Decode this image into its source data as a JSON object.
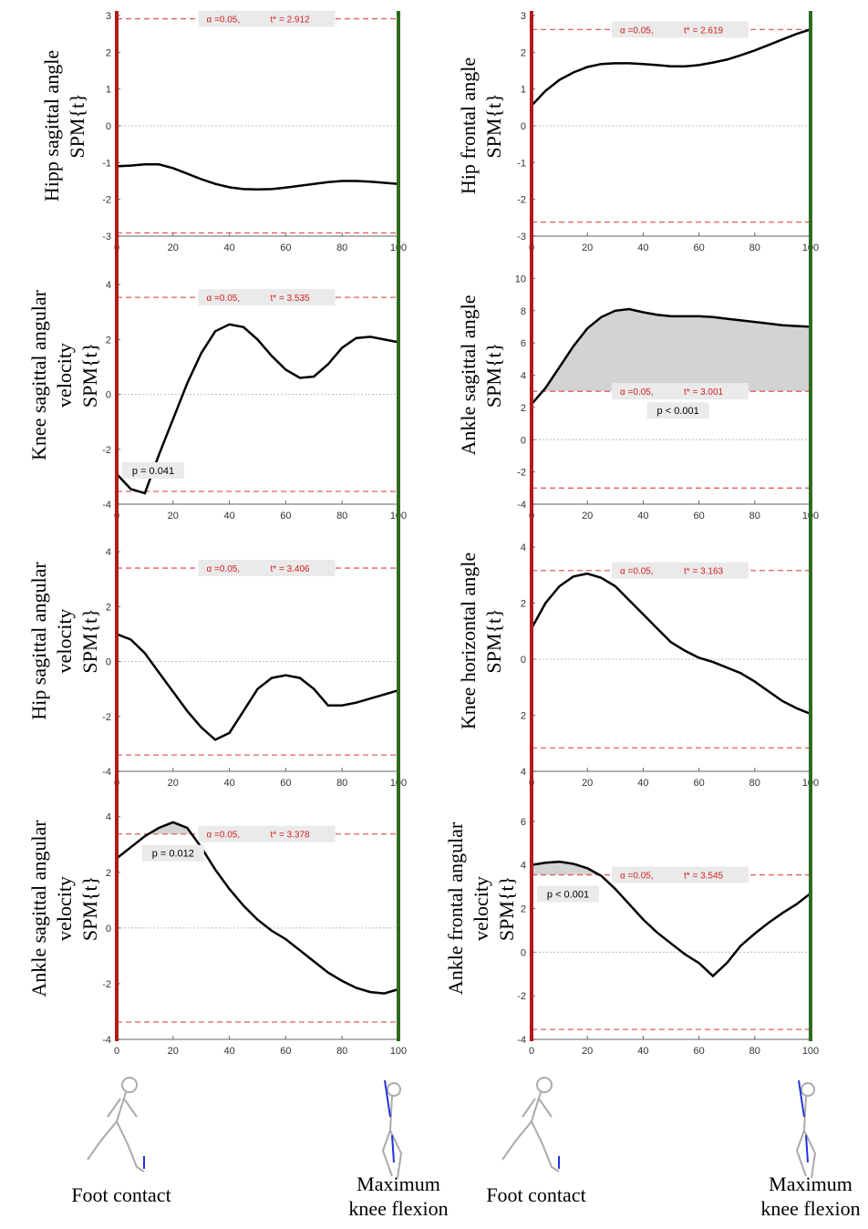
{
  "chart_data": [
    {
      "type": "line",
      "ylabel": [
        "Hipp sagittal angle",
        "SPM{t}"
      ],
      "x": [
        0,
        5,
        10,
        15,
        20,
        25,
        30,
        35,
        40,
        45,
        50,
        55,
        60,
        65,
        70,
        75,
        80,
        85,
        90,
        95,
        100
      ],
      "values": [
        -1.1,
        -1.08,
        -1.05,
        -1.05,
        -1.15,
        -1.3,
        -1.45,
        -1.58,
        -1.67,
        -1.72,
        -1.73,
        -1.72,
        -1.68,
        -1.63,
        -1.58,
        -1.53,
        -1.5,
        -1.5,
        -1.52,
        -1.55,
        -1.58
      ],
      "xlim": [
        0,
        100
      ],
      "xticks": [
        0,
        20,
        40,
        60,
        80,
        100
      ],
      "ylim": [
        -3,
        3
      ],
      "yticks": [
        -3,
        -2,
        -1,
        0,
        1,
        2,
        3
      ],
      "threshold": 2.912,
      "alpha_label": "α =0.05,",
      "threshold_label": "t* = 2.912"
    },
    {
      "type": "line",
      "ylabel": [
        "Hip frontal angle",
        "SPM{t}"
      ],
      "x": [
        0,
        5,
        10,
        15,
        20,
        25,
        30,
        35,
        40,
        45,
        50,
        55,
        60,
        65,
        70,
        75,
        80,
        85,
        90,
        95,
        100
      ],
      "values": [
        0.55,
        0.95,
        1.25,
        1.45,
        1.6,
        1.68,
        1.7,
        1.7,
        1.68,
        1.65,
        1.62,
        1.62,
        1.65,
        1.72,
        1.8,
        1.92,
        2.05,
        2.2,
        2.35,
        2.5,
        2.62
      ],
      "xlim": [
        0,
        100
      ],
      "xticks": [
        0,
        20,
        40,
        60,
        80,
        100
      ],
      "ylim": [
        -3,
        3
      ],
      "yticks": [
        -3,
        -2,
        -1,
        0,
        1,
        2,
        3
      ],
      "threshold": 2.619,
      "alpha_label": "α =0.05,",
      "threshold_label": "t* = 2.619"
    },
    {
      "type": "line",
      "ylabel": [
        "Knee sagittal angular",
        "velocity",
        "SPM{t}"
      ],
      "x": [
        0,
        5,
        10,
        15,
        20,
        25,
        30,
        35,
        40,
        45,
        50,
        55,
        60,
        65,
        70,
        75,
        80,
        85,
        90,
        95,
        100
      ],
      "values": [
        -2.9,
        -3.45,
        -3.6,
        -2.2,
        -0.9,
        0.4,
        1.5,
        2.3,
        2.55,
        2.45,
        2.0,
        1.4,
        0.9,
        0.6,
        0.65,
        1.1,
        1.7,
        2.05,
        2.1,
        2.0,
        1.9
      ],
      "xlim": [
        0,
        100
      ],
      "xticks": [
        0,
        20,
        40,
        60,
        80,
        100
      ],
      "ylim": [
        -4,
        5.4
      ],
      "yticks": [
        -4,
        -2,
        0,
        2,
        4
      ],
      "threshold": 3.535,
      "alpha_label": "α =0.05,",
      "threshold_label": "t* = 3.535",
      "p_label": "p = 0.041"
    },
    {
      "type": "line",
      "ylabel": [
        "Ankle sagittal angle",
        "SPM{t}"
      ],
      "x": [
        0,
        5,
        10,
        15,
        20,
        25,
        30,
        35,
        40,
        45,
        50,
        55,
        60,
        65,
        70,
        75,
        80,
        85,
        90,
        95,
        100
      ],
      "values": [
        2.2,
        3.2,
        4.5,
        5.8,
        6.9,
        7.6,
        8.0,
        8.1,
        7.9,
        7.75,
        7.65,
        7.65,
        7.65,
        7.6,
        7.5,
        7.4,
        7.3,
        7.2,
        7.1,
        7.05,
        7.0
      ],
      "xlim": [
        0,
        100
      ],
      "xticks": [
        0,
        20,
        40,
        60,
        80,
        100
      ],
      "ylim": [
        -4,
        12
      ],
      "yticks": [
        -4,
        -2,
        0,
        2,
        4,
        6,
        8,
        10
      ],
      "threshold": 3.001,
      "alpha_label": "α =0.05,",
      "threshold_label": "t* = 3.001",
      "p_label": "p < 0.001"
    },
    {
      "type": "line",
      "ylabel": [
        "Hip sagittal angular",
        "velocity",
        "SPM{t}"
      ],
      "x": [
        0,
        5,
        10,
        15,
        20,
        25,
        30,
        35,
        40,
        45,
        50,
        55,
        60,
        65,
        70,
        75,
        80,
        85,
        90,
        95,
        100
      ],
      "values": [
        1.0,
        0.8,
        0.3,
        -0.4,
        -1.1,
        -1.8,
        -2.4,
        -2.85,
        -2.6,
        -1.8,
        -1.0,
        -0.6,
        -0.5,
        -0.6,
        -1.0,
        -1.6,
        -1.6,
        -1.5,
        -1.35,
        -1.2,
        -1.05
      ],
      "xlim": [
        0,
        100
      ],
      "xticks": [
        0,
        20,
        40,
        60,
        80,
        100
      ],
      "ylim": [
        -4,
        5.5
      ],
      "yticks": [
        -4,
        -2,
        0,
        2,
        4
      ],
      "threshold": 3.406,
      "alpha_label": "α =0.05,",
      "threshold_label": "t* = 3.406"
    },
    {
      "type": "line",
      "ylabel": [
        "Knee horizontal angle",
        "SPM{t}"
      ],
      "x": [
        0,
        5,
        10,
        15,
        20,
        25,
        30,
        35,
        40,
        45,
        50,
        55,
        60,
        65,
        70,
        75,
        80,
        85,
        90,
        95,
        100
      ],
      "values": [
        1.1,
        2.0,
        2.6,
        2.95,
        3.05,
        2.9,
        2.6,
        2.1,
        1.6,
        1.1,
        0.6,
        0.3,
        0.05,
        -0.1,
        -0.3,
        -0.5,
        -0.8,
        -1.15,
        -1.5,
        -1.75,
        -1.95
      ],
      "xlim": [
        0,
        100
      ],
      "xticks": [
        0,
        20,
        40,
        60,
        80,
        100
      ],
      "ylim": [
        -4,
        5.3
      ],
      "yticks": [
        {
          "value": -4,
          "label": "4"
        },
        {
          "value": -2,
          "label": "2"
        },
        0,
        2,
        4
      ],
      "threshold": 3.163,
      "alpha_label": "α =0.05,",
      "threshold_label": "t* = 3.163"
    },
    {
      "type": "line",
      "ylabel": [
        "Ankle sagittal angular",
        "velocity",
        "SPM{t}"
      ],
      "x": [
        0,
        5,
        10,
        15,
        20,
        25,
        30,
        35,
        40,
        45,
        50,
        55,
        60,
        65,
        70,
        75,
        80,
        85,
        90,
        95,
        100
      ],
      "values": [
        2.5,
        2.9,
        3.3,
        3.6,
        3.8,
        3.6,
        2.9,
        2.1,
        1.4,
        0.8,
        0.3,
        -0.1,
        -0.4,
        -0.8,
        -1.2,
        -1.6,
        -1.9,
        -2.15,
        -2.3,
        -2.35,
        -2.2
      ],
      "xlim": [
        0,
        100
      ],
      "xticks": [
        0,
        20,
        40,
        60,
        80,
        100
      ],
      "ylim": [
        -4,
        5.4
      ],
      "yticks": [
        -4,
        -2,
        0,
        2,
        4
      ],
      "threshold": 3.378,
      "alpha_label": "α =0.05,",
      "threshold_label": "t* = 3.378",
      "p_label": "p = 0.012"
    },
    {
      "type": "line",
      "ylabel": [
        "Ankle frontal angular",
        "velocity",
        "SPM{t}"
      ],
      "x": [
        0,
        5,
        10,
        15,
        20,
        25,
        30,
        35,
        40,
        45,
        50,
        55,
        60,
        65,
        70,
        75,
        80,
        85,
        90,
        95,
        100
      ],
      "values": [
        4.0,
        4.1,
        4.15,
        4.05,
        3.85,
        3.5,
        2.9,
        2.2,
        1.5,
        0.9,
        0.4,
        -0.1,
        -0.5,
        -1.1,
        -0.5,
        0.3,
        0.85,
        1.35,
        1.8,
        2.2,
        2.7
      ],
      "xlim": [
        0,
        100
      ],
      "xticks": [
        0,
        20,
        40,
        60,
        80,
        100
      ],
      "ylim": [
        -4,
        8
      ],
      "yticks": [
        -4,
        -2,
        0,
        2,
        4,
        6
      ],
      "threshold": 3.545,
      "alpha_label": "α =0.05,",
      "threshold_label": "t* = 3.545",
      "p_label": "p < 0.001"
    }
  ],
  "events": {
    "start": "Foot contact",
    "end": [
      "Maximum",
      "knee flexion"
    ]
  }
}
